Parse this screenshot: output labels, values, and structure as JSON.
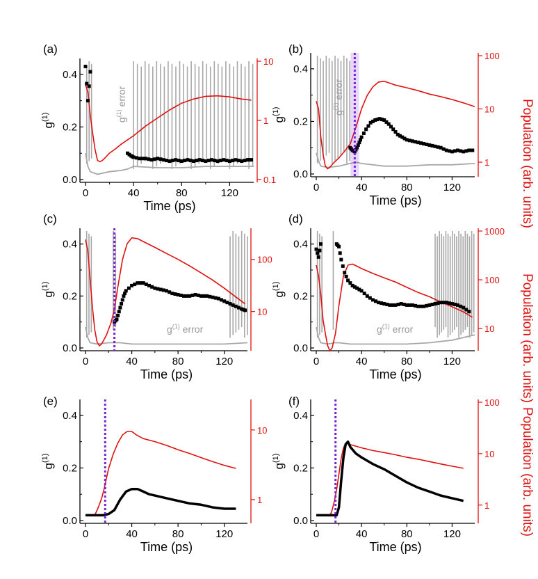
{
  "figure_labels": {
    "right_axis_label": "Population (arb. units)",
    "g1_label": "g",
    "g1_superscript": "(1)",
    "x_label": "Time (ps)"
  },
  "colors": {
    "g1": "#000000",
    "population": "#e01010",
    "error": "#a8a8a8",
    "marker": "#7a22d6"
  },
  "chart_data": [
    {
      "type": "line",
      "panel": "(a)",
      "title": "(a)",
      "xlabel": "Time (ps)",
      "ylabel": "g(1)",
      "y2label": "",
      "xlim": [
        0,
        140
      ],
      "ylim": [
        0,
        0.45
      ],
      "y2lim": [
        0.1,
        10
      ],
      "y2scale": "log",
      "xticks": [
        "0",
        "40",
        "80",
        "120"
      ],
      "yticks": [
        "0.0",
        "0.2",
        "0.4"
      ],
      "y2ticks": [
        "0.1",
        "1",
        "10"
      ],
      "annotation": "g(1) error",
      "marker_time": null,
      "series": [
        {
          "name": "g1",
          "style": "points",
          "x": [
            0,
            2,
            4,
            35,
            38,
            40,
            45,
            50,
            55,
            60,
            65,
            70,
            75,
            80,
            85,
            90,
            95,
            100,
            105,
            110,
            115,
            120,
            125,
            130,
            135,
            138
          ],
          "y": [
            0.43,
            0.3,
            0.41,
            0.1,
            0.09,
            0.085,
            0.08,
            0.08,
            0.075,
            0.08,
            0.075,
            0.07,
            0.075,
            0.07,
            0.075,
            0.07,
            0.075,
            0.07,
            0.075,
            0.07,
            0.075,
            0.07,
            0.075,
            0.07,
            0.075,
            0.075
          ]
        },
        {
          "name": "population",
          "x": [
            0,
            2,
            4,
            6,
            8,
            10,
            12,
            14,
            16,
            20,
            25,
            30,
            40,
            50,
            60,
            70,
            80,
            90,
            100,
            110,
            120,
            130,
            138
          ],
          "y": [
            4,
            3,
            1.2,
            0.6,
            0.32,
            0.21,
            0.2,
            0.21,
            0.23,
            0.28,
            0.33,
            0.4,
            0.55,
            0.8,
            1.1,
            1.5,
            1.95,
            2.3,
            2.55,
            2.6,
            2.5,
            2.3,
            2.2
          ]
        },
        {
          "name": "error",
          "x": [
            0,
            2,
            4,
            10,
            20,
            30,
            35,
            40,
            60,
            80,
            100,
            120,
            140
          ],
          "y": [
            0.1,
            0.05,
            0.03,
            0.02,
            0.03,
            0.035,
            0.04,
            0.05,
            0.045,
            0.045,
            0.05,
            0.05,
            0.05
          ]
        }
      ]
    },
    {
      "type": "line",
      "panel": "(b)",
      "title": "(b)",
      "xlabel": "Time (ps)",
      "ylabel": "g(1)",
      "y2label": "Population (arb. units)",
      "xlim": [
        0,
        140
      ],
      "ylim": [
        0,
        0.45
      ],
      "y2lim": [
        0.6,
        100
      ],
      "y2scale": "log",
      "xticks": [
        "0",
        "40",
        "80",
        "120"
      ],
      "yticks": [
        "0.0",
        "0.2",
        "0.4"
      ],
      "y2ticks": [
        "1",
        "10",
        "100"
      ],
      "annotation": "g(1) error",
      "marker_time": 34,
      "series": [
        {
          "name": "g1",
          "style": "points",
          "x": [
            30,
            32,
            34,
            36,
            38,
            40,
            44,
            48,
            52,
            56,
            60,
            64,
            68,
            72,
            76,
            80,
            85,
            90,
            95,
            100,
            105,
            110,
            115,
            120,
            125,
            130,
            135,
            138
          ],
          "y": [
            0.1,
            0.09,
            0.085,
            0.1,
            0.12,
            0.14,
            0.17,
            0.195,
            0.205,
            0.21,
            0.205,
            0.19,
            0.17,
            0.15,
            0.14,
            0.13,
            0.125,
            0.12,
            0.115,
            0.11,
            0.105,
            0.1,
            0.09,
            0.085,
            0.09,
            0.085,
            0.09,
            0.09
          ]
        },
        {
          "name": "population",
          "x": [
            0,
            2,
            4,
            6,
            8,
            10,
            12,
            15,
            20,
            25,
            30,
            35,
            40,
            45,
            50,
            55,
            60,
            70,
            80,
            90,
            100,
            110,
            120,
            130,
            140
          ],
          "y": [
            14,
            10,
            3,
            1.4,
            0.85,
            0.75,
            0.8,
            0.95,
            1.2,
            1.6,
            2.2,
            4.5,
            10,
            18,
            26,
            32,
            33,
            28,
            25,
            22,
            19,
            17,
            15,
            13,
            11
          ]
        },
        {
          "name": "error",
          "x": [
            0,
            2,
            4,
            10,
            20,
            30,
            35,
            40,
            60,
            80,
            100,
            120,
            140
          ],
          "y": [
            0.08,
            0.05,
            0.03,
            0.025,
            0.03,
            0.04,
            0.045,
            0.04,
            0.03,
            0.03,
            0.035,
            0.035,
            0.04
          ]
        }
      ]
    },
    {
      "type": "line",
      "panel": "(c)",
      "title": "(c)",
      "xlabel": "Time (ps)",
      "ylabel": "g(1)",
      "y2label": "",
      "xlim": [
        0,
        140
      ],
      "ylim": [
        0,
        0.45
      ],
      "y2lim": [
        2,
        350
      ],
      "y2scale": "log",
      "xticks": [
        "0",
        "40",
        "80",
        "120"
      ],
      "yticks": [
        "0.0",
        "0.2",
        "0.4"
      ],
      "y2ticks": [
        "10",
        "100"
      ],
      "annotation": "g(1) error",
      "marker_time": 25,
      "series": [
        {
          "name": "g1",
          "style": "points",
          "x": [
            25,
            27,
            29,
            31,
            33,
            35,
            40,
            45,
            50,
            55,
            60,
            65,
            70,
            75,
            80,
            85,
            90,
            95,
            100,
            105,
            110,
            115,
            120,
            125,
            130,
            135,
            138
          ],
          "y": [
            0.1,
            0.11,
            0.14,
            0.17,
            0.2,
            0.22,
            0.24,
            0.25,
            0.25,
            0.24,
            0.23,
            0.225,
            0.22,
            0.21,
            0.205,
            0.2,
            0.2,
            0.205,
            0.2,
            0.2,
            0.195,
            0.19,
            0.18,
            0.17,
            0.16,
            0.15,
            0.145
          ]
        },
        {
          "name": "population",
          "x": [
            0,
            2,
            4,
            6,
            8,
            10,
            12,
            14,
            18,
            22,
            25,
            28,
            32,
            36,
            40,
            45,
            50,
            60,
            70,
            80,
            90,
            100,
            110,
            120,
            130,
            138
          ],
          "y": [
            240,
            150,
            40,
            12,
            4.5,
            2.6,
            2.2,
            2.4,
            3.5,
            6,
            11,
            30,
            100,
            200,
            260,
            250,
            220,
            170,
            130,
            100,
            75,
            55,
            40,
            28,
            19,
            14
          ]
        },
        {
          "name": "error",
          "x": [
            0,
            2,
            4,
            10,
            20,
            25,
            30,
            40,
            60,
            80,
            100,
            120,
            140
          ],
          "y": [
            0.08,
            0.04,
            0.02,
            0.015,
            0.02,
            0.02,
            0.02,
            0.015,
            0.015,
            0.015,
            0.015,
            0.015,
            0.02
          ]
        }
      ]
    },
    {
      "type": "line",
      "panel": "(d)",
      "title": "(d)",
      "xlabel": "Time (ps)",
      "ylabel": "g(1)",
      "y2label": "Population (arb. units)",
      "xlim": [
        0,
        140
      ],
      "ylim": [
        0,
        0.45
      ],
      "y2lim": [
        4,
        1000
      ],
      "y2scale": "log",
      "xticks": [
        "0",
        "40",
        "80",
        "120"
      ],
      "yticks": [
        "0.0",
        "0.2",
        "0.4"
      ],
      "y2ticks": [
        "10",
        "100",
        "1000"
      ],
      "annotation": "g(1) error",
      "marker_time": null,
      "series": [
        {
          "name": "g1",
          "style": "points",
          "x": [
            0,
            2,
            4,
            18,
            20,
            22,
            25,
            28,
            32,
            36,
            40,
            45,
            50,
            55,
            60,
            65,
            70,
            75,
            80,
            85,
            90,
            95,
            100,
            105,
            110,
            115,
            120,
            125,
            130,
            135
          ],
          "y": [
            0.38,
            0.35,
            0.4,
            0.4,
            0.39,
            0.34,
            0.29,
            0.26,
            0.24,
            0.23,
            0.22,
            0.2,
            0.185,
            0.175,
            0.17,
            0.165,
            0.165,
            0.17,
            0.165,
            0.165,
            0.16,
            0.16,
            0.165,
            0.17,
            0.175,
            0.175,
            0.17,
            0.165,
            0.155,
            0.14
          ]
        },
        {
          "name": "population",
          "x": [
            0,
            2,
            4,
            6,
            8,
            10,
            12,
            14,
            17,
            20,
            24,
            28,
            32,
            36,
            40,
            50,
            60,
            70,
            80,
            90,
            100,
            110,
            120,
            130,
            138
          ],
          "y": [
            200,
            120,
            50,
            15,
            8,
            4.5,
            3.5,
            4,
            8,
            30,
            120,
            200,
            210,
            190,
            170,
            135,
            110,
            90,
            70,
            55,
            45,
            35,
            28,
            22,
            17
          ]
        },
        {
          "name": "error",
          "x": [
            0,
            2,
            4,
            10,
            16,
            20,
            30,
            50,
            80,
            100,
            120,
            140
          ],
          "y": [
            0.08,
            0.04,
            0.02,
            0.015,
            0.02,
            0.02,
            0.015,
            0.015,
            0.015,
            0.02,
            0.03,
            0.05
          ]
        }
      ]
    },
    {
      "type": "line",
      "panel": "(e)",
      "title": "(e)",
      "xlabel": "Time (ps)",
      "ylabel": "g(1)",
      "y2label": "",
      "xlim": [
        0,
        140
      ],
      "ylim": [
        0,
        0.45
      ],
      "y2lim": [
        0.5,
        25
      ],
      "y2scale": "log",
      "xticks": [
        "0",
        "40",
        "80",
        "120"
      ],
      "yticks": [
        "0.0",
        "0.2",
        "0.4"
      ],
      "y2ticks": [
        "1",
        "10"
      ],
      "annotation": "",
      "marker_time": 17,
      "series": [
        {
          "name": "g1",
          "style": "line",
          "x": [
            0,
            5,
            10,
            15,
            20,
            25,
            30,
            35,
            40,
            45,
            50,
            55,
            60,
            70,
            80,
            90,
            100,
            110,
            120,
            130
          ],
          "y": [
            0.02,
            0.02,
            0.02,
            0.02,
            0.025,
            0.04,
            0.08,
            0.11,
            0.12,
            0.12,
            0.11,
            0.1,
            0.095,
            0.085,
            0.075,
            0.065,
            0.06,
            0.05,
            0.045,
            0.045
          ]
        },
        {
          "name": "population",
          "x": [
            8,
            10,
            12,
            14,
            16,
            18,
            20,
            24,
            28,
            32,
            36,
            40,
            44,
            50,
            60,
            70,
            80,
            90,
            100,
            110,
            120,
            130
          ],
          "y": [
            0.6,
            0.7,
            0.85,
            1.05,
            1.4,
            2,
            2.8,
            4.5,
            6.5,
            8.5,
            9.5,
            9.5,
            8.5,
            7.5,
            6.8,
            6,
            5.2,
            4.6,
            4,
            3.5,
            3.1,
            2.8
          ]
        }
      ]
    },
    {
      "type": "line",
      "panel": "(f)",
      "title": "(f)",
      "xlabel": "Time (ps)",
      "ylabel": "g(1)",
      "y2label": "Population (arb. units)",
      "xlim": [
        0,
        140
      ],
      "ylim": [
        0,
        0.45
      ],
      "y2lim": [
        0.5,
        100
      ],
      "y2scale": "log",
      "xticks": [
        "0",
        "40",
        "80",
        "120"
      ],
      "yticks": [
        "0.0",
        "0.2",
        "0.4"
      ],
      "y2ticks": [
        "1",
        "10",
        "100"
      ],
      "annotation": "",
      "marker_time": 17,
      "series": [
        {
          "name": "g1",
          "style": "line",
          "x": [
            0,
            5,
            10,
            15,
            18,
            20,
            22,
            24,
            26,
            28,
            30,
            35,
            40,
            50,
            60,
            70,
            80,
            90,
            100,
            110,
            120,
            130
          ],
          "y": [
            0.02,
            0.02,
            0.02,
            0.02,
            0.02,
            0.05,
            0.15,
            0.24,
            0.29,
            0.3,
            0.28,
            0.255,
            0.24,
            0.215,
            0.195,
            0.17,
            0.145,
            0.125,
            0.11,
            0.095,
            0.085,
            0.075
          ]
        },
        {
          "name": "population",
          "x": [
            12,
            14,
            16,
            18,
            20,
            22,
            24,
            26,
            28,
            30,
            35,
            40,
            50,
            60,
            70,
            80,
            90,
            100,
            110,
            120,
            130
          ],
          "y": [
            0.6,
            0.8,
            1.2,
            2,
            4,
            8,
            13,
            16,
            17,
            15,
            14,
            13,
            11.5,
            10.5,
            9.5,
            8.5,
            7.8,
            7,
            6.3,
            5.7,
            5.2
          ]
        }
      ]
    }
  ]
}
